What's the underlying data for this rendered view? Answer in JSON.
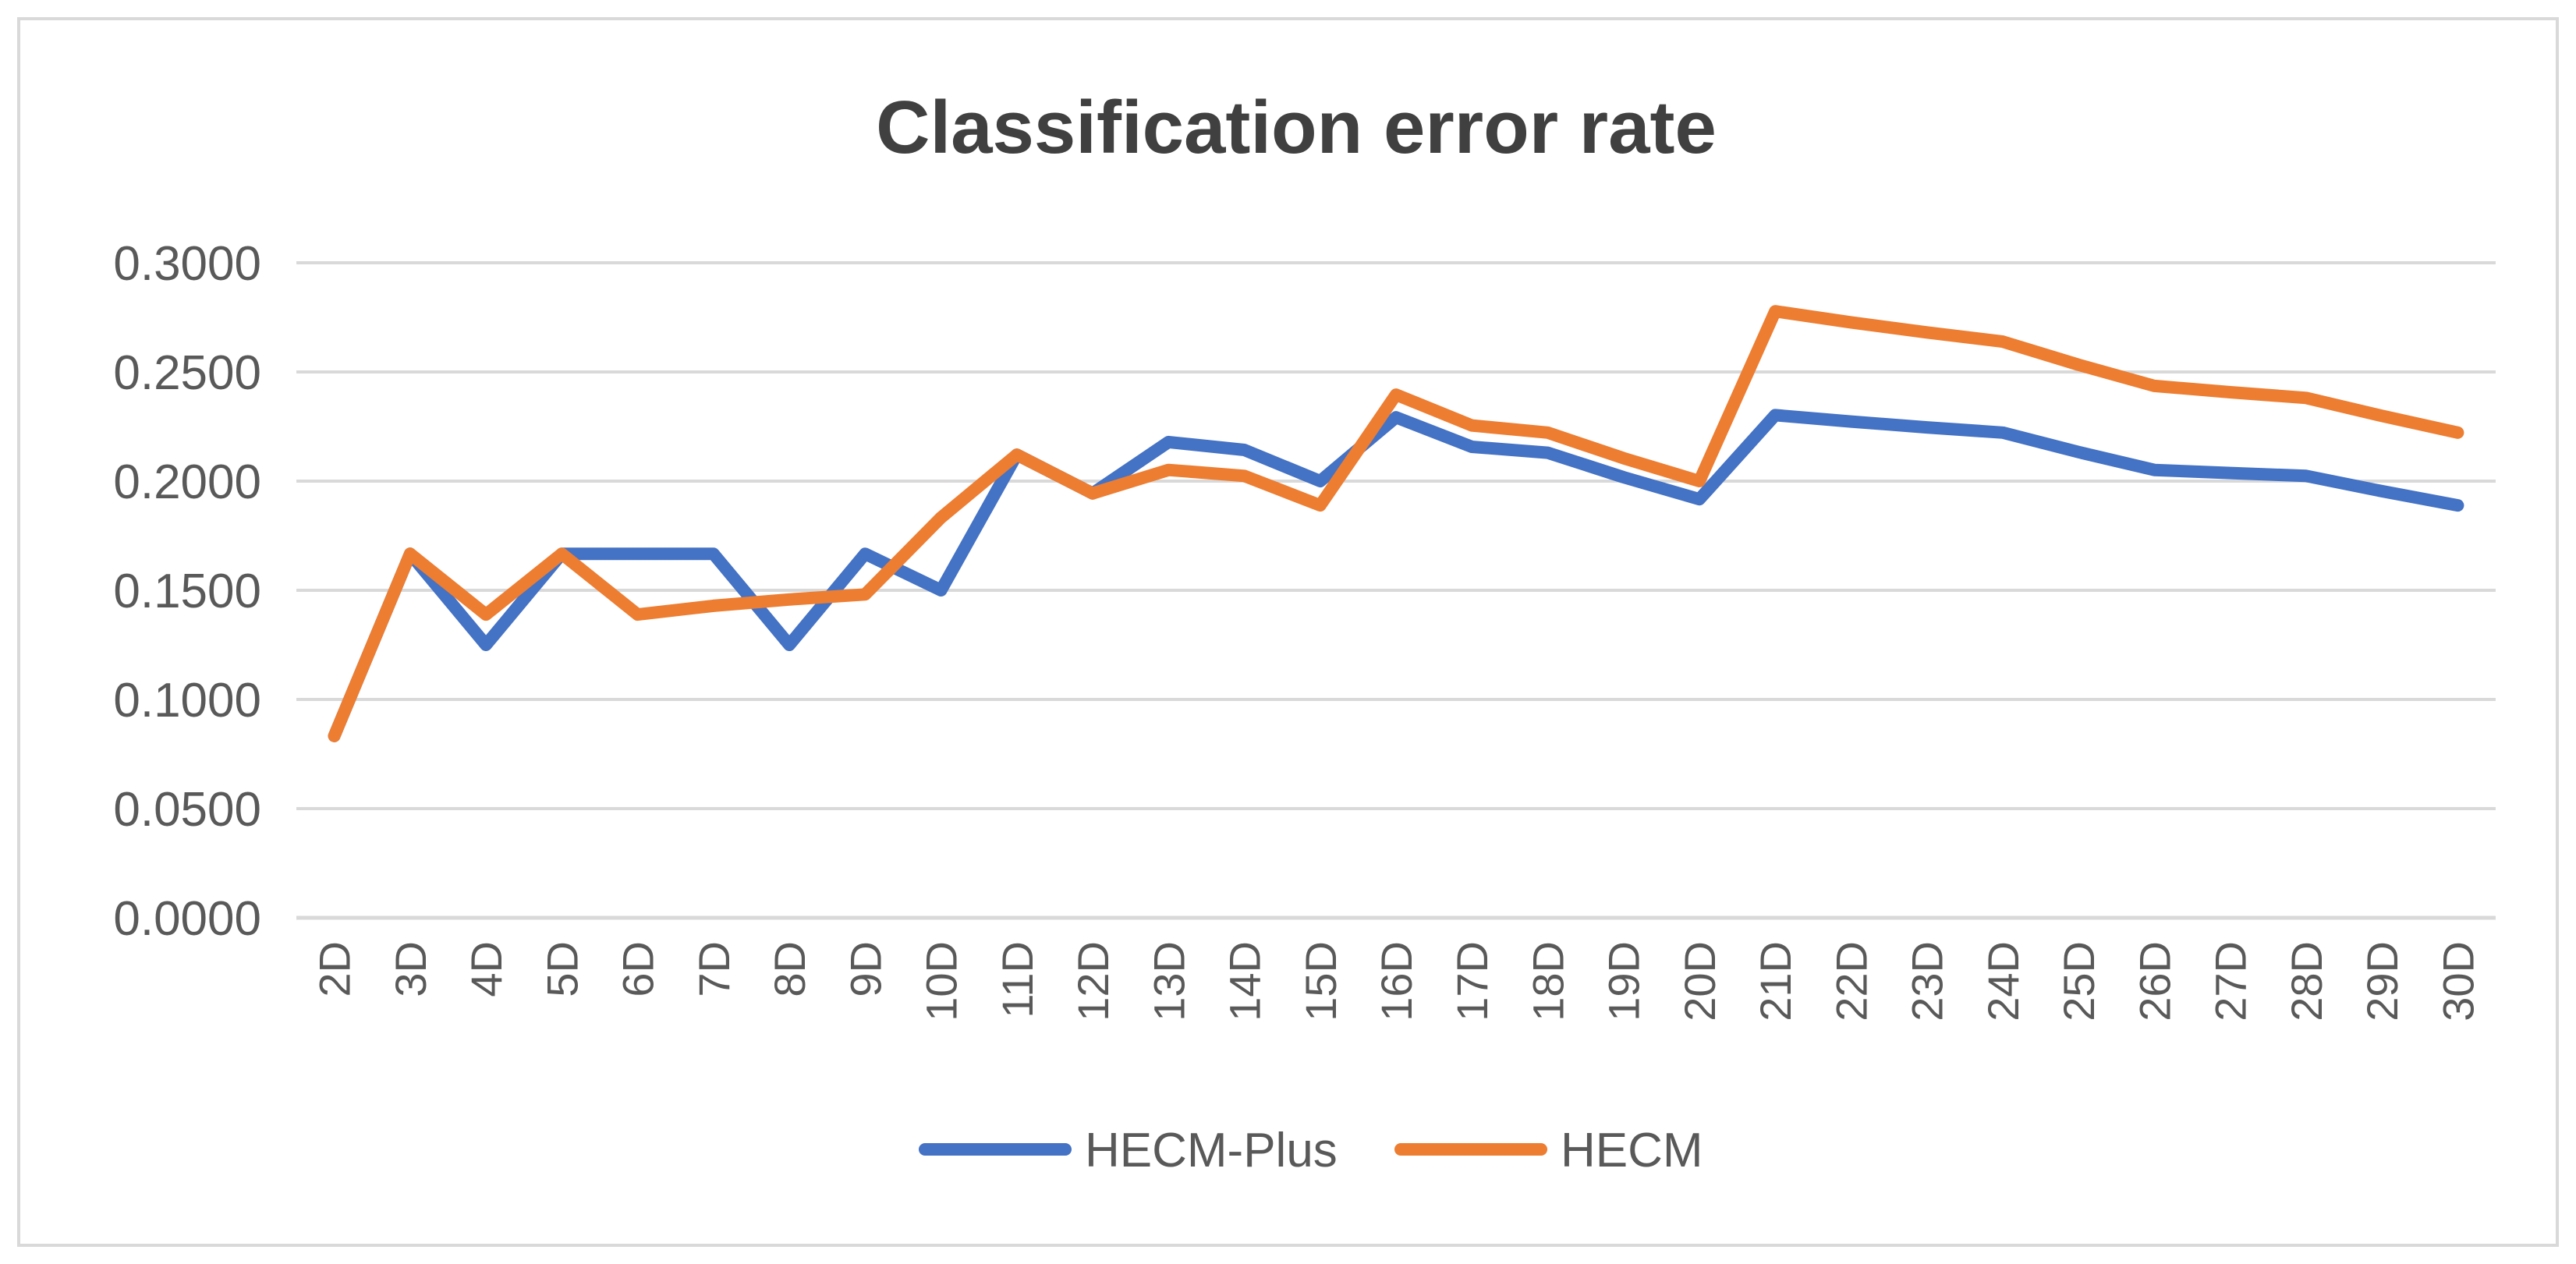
{
  "chart_data": {
    "type": "line",
    "title": "Classification error rate",
    "xlabel": "",
    "ylabel": "",
    "categories": [
      "2D",
      "3D",
      "4D",
      "5D",
      "6D",
      "7D",
      "8D",
      "9D",
      "10D",
      "11D",
      "12D",
      "13D",
      "14D",
      "15D",
      "16D",
      "17D",
      "18D",
      "19D",
      "20D",
      "21D",
      "22D",
      "23D",
      "24D",
      "25D",
      "26D",
      "27D",
      "28D",
      "29D",
      "30D"
    ],
    "yticks": [
      "0.0000",
      "0.0500",
      "0.1000",
      "0.1500",
      "0.2000",
      "0.2500",
      "0.3000"
    ],
    "ylim": [
      0,
      0.3
    ],
    "grid": true,
    "legend_position": "bottom",
    "series": [
      {
        "name": "HECM-Plus",
        "color": "#4472c4",
        "values": [
          0.0833,
          0.1667,
          0.125,
          0.1667,
          0.1667,
          0.1667,
          0.125,
          0.1667,
          0.15,
          0.2121,
          0.1944,
          0.2179,
          0.2143,
          0.2,
          0.2292,
          0.2157,
          0.213,
          0.2018,
          0.1917,
          0.2302,
          0.2273,
          0.2246,
          0.2222,
          0.2133,
          0.2051,
          0.2037,
          0.2024,
          0.1954,
          0.1889
        ]
      },
      {
        "name": "HECM",
        "color": "#ed7d31",
        "values": [
          0.0833,
          0.1667,
          0.1389,
          0.1667,
          0.1389,
          0.1429,
          0.1458,
          0.1481,
          0.1833,
          0.2121,
          0.1944,
          0.2051,
          0.2024,
          0.1889,
          0.2396,
          0.2255,
          0.2222,
          0.2105,
          0.2,
          0.2778,
          0.2727,
          0.2681,
          0.2639,
          0.2533,
          0.2436,
          0.2407,
          0.2381,
          0.2299,
          0.2222
        ]
      }
    ]
  }
}
